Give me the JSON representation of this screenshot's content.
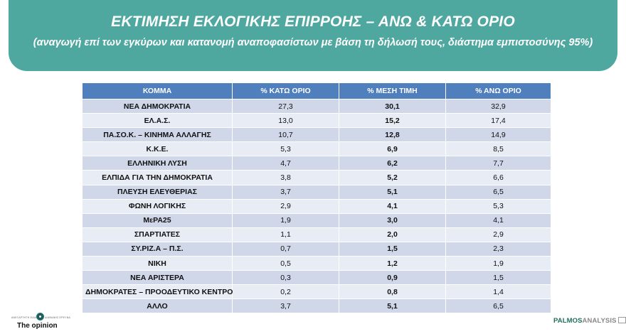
{
  "header": {
    "title": "ΕΚΤΙΜΗΣΗ ΕΚΛΟΓΙΚΗΣ ΕΠΙΡΡΟΗΣ – ΑΝΩ & ΚΑΤΩ ΟΡΙΟ",
    "subtitle": "(αναγωγή επί των εγκύρων και κατανομή αναποφασίστων με βάση τη δήλωσή τους, διάστημα εμπιστοσύνης 95%)",
    "banner_color": "#4fa89f"
  },
  "table": {
    "columns": [
      "ΚΟΜΜΑ",
      "% ΚΑΤΩ ΟΡΙΟ",
      "% ΜΕΣΗ ΤΙΜΗ",
      "% ΑΝΩ ΟΡΙΟ"
    ],
    "header_color": "#4f7fbd"
  },
  "chart_data": {
    "type": "table",
    "title": "ΕΚΤΙΜΗΣΗ ΕΚΛΟΓΙΚΗΣ ΕΠΙΡΡΟΗΣ – ΑΝΩ & ΚΑΤΩ ΟΡΙΟ",
    "subtitle": "(αναγωγή επί των εγκύρων και κατανομή αναποφασίστων με βάση τη δήλωσή τους, διάστημα εμπιστοσύνης 95%)",
    "columns": [
      "ΚΟΜΜΑ",
      "% ΚΑΤΩ ΟΡΙΟ",
      "% ΜΕΣΗ ΤΙΜΗ",
      "% ΑΝΩ ΟΡΙΟ"
    ],
    "rows": [
      {
        "party": "ΝΕΑ ΔΗΜΟΚΡΑΤΙΑ",
        "low": "27,3",
        "mid": "30,1",
        "high": "32,9"
      },
      {
        "party": "ΕΛ.Α.Σ.",
        "low": "13,0",
        "mid": "15,2",
        "high": "17,4"
      },
      {
        "party": "ΠΑ.ΣΟ.Κ. – ΚΙΝΗΜΑ ΑΛΛΑΓΗΣ",
        "low": "10,7",
        "mid": "12,8",
        "high": "14,9"
      },
      {
        "party": "Κ.Κ.Ε.",
        "low": "5,3",
        "mid": "6,9",
        "high": "8,5"
      },
      {
        "party": "ΕΛΛΗΝΙΚΗ ΛΥΣΗ",
        "low": "4,7",
        "mid": "6,2",
        "high": "7,7"
      },
      {
        "party": "ΕΛΠΙΔΑ ΓΙΑ ΤΗΝ ΔΗΜΟΚΡΑΤΙΑ",
        "low": "3,8",
        "mid": "5,2",
        "high": "6,6"
      },
      {
        "party": "ΠΛΕΥΣΗ ΕΛΕΥΘΕΡΙΑΣ",
        "low": "3,7",
        "mid": "5,1",
        "high": "6,5"
      },
      {
        "party": "ΦΩΝΗ ΛΟΓΙΚΗΣ",
        "low": "2,9",
        "mid": "4,1",
        "high": "5,3"
      },
      {
        "party": "ΜεΡΑ25",
        "low": "1,9",
        "mid": "3,0",
        "high": "4,1"
      },
      {
        "party": "ΣΠΑΡΤΙΑΤΕΣ",
        "low": "1,1",
        "mid": "2,0",
        "high": "2,9"
      },
      {
        "party": "ΣΥ.ΡΙΖ.Α – Π.Σ.",
        "low": "0,7",
        "mid": "1,5",
        "high": "2,3"
      },
      {
        "party": "ΝΙΚΗ",
        "low": "0,5",
        "mid": "1,2",
        "high": "1,9"
      },
      {
        "party": "ΝΕΑ ΑΡΙΣΤΕΡΑ",
        "low": "0,3",
        "mid": "0,9",
        "high": "1,5"
      },
      {
        "party": "ΔΗΜΟΚΡΑΤΕΣ – ΠΡΟΟΔΕΥΤΙΚΟ ΚΕΝΤΡΟ",
        "low": "0,2",
        "mid": "0,8",
        "high": "1,4"
      },
      {
        "party": "ΑΛΛΟ",
        "low": "3,7",
        "mid": "5,1",
        "high": "6,5"
      }
    ]
  },
  "footer": {
    "left_logo": {
      "tag_left": "ΑΝΕΞΑΡΤΗΤΗ ΕΙΔΗΣΗ",
      "tag_right": "ΔΙΑΦΑΝΗΣ ΕΡΕΥΝΑ",
      "name": "The opinion"
    },
    "right_logo": {
      "part1": "PALMOS",
      "part2": "ANALYSIS"
    }
  }
}
